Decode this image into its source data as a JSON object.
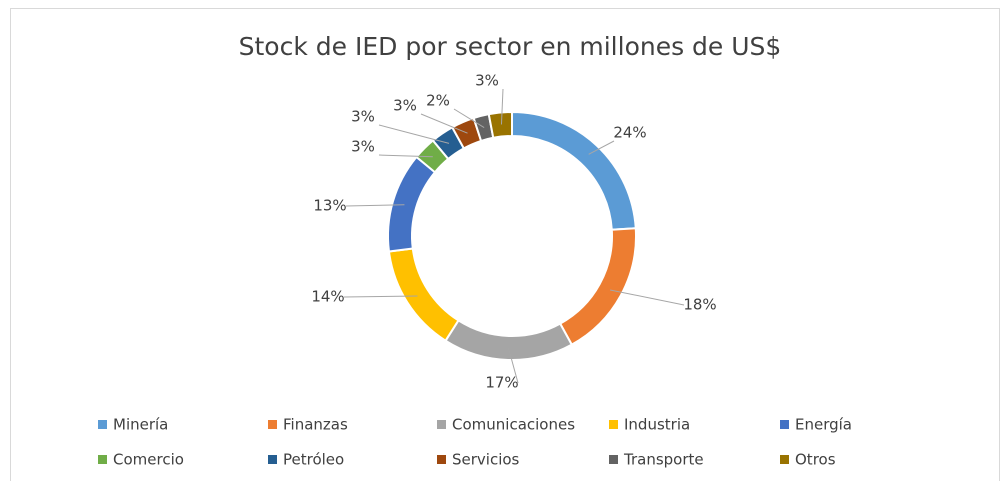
{
  "chart_data": {
    "type": "donut",
    "title": "Stock de IED por sector en millones de US$",
    "categories": [
      "Minería",
      "Finanzas",
      "Comunicaciones",
      "Industria",
      "Energía",
      "Comercio",
      "Petróleo",
      "Servicios",
      "Transporte",
      "Otros"
    ],
    "values": [
      24,
      18,
      17,
      14,
      13,
      3,
      3,
      3,
      2,
      3
    ],
    "value_labels": [
      "24%",
      "18%",
      "17%",
      "14%",
      "13%",
      "3%",
      "3%",
      "3%",
      "2%",
      "3%"
    ],
    "colors": [
      "#5b9bd5",
      "#ed7d31",
      "#a5a5a5",
      "#ffc000",
      "#4472c4",
      "#70ad47",
      "#255e91",
      "#9e480e",
      "#636363",
      "#997300"
    ],
    "legend": "bottom"
  }
}
